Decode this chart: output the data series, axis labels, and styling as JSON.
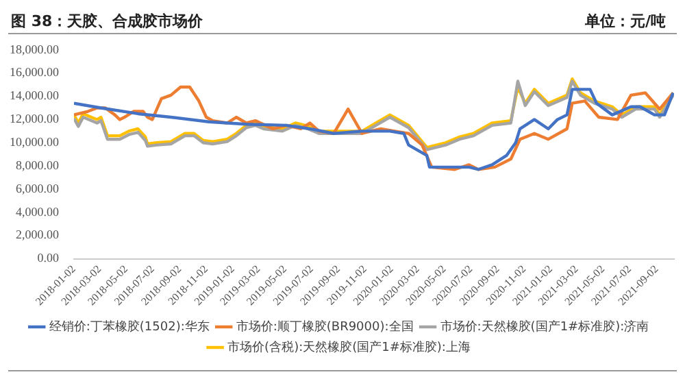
{
  "chart_data": {
    "type": "line",
    "title": "图 38：天胶、合成胶市场价",
    "annotations": [
      "单位：元/吨"
    ],
    "xlim": [
      "2018-01-02",
      "2021-10-12"
    ],
    "xticks": [
      "2018-01-02",
      "2018-03-02",
      "2018-05-02",
      "2018-07-02",
      "2018-09-02",
      "2018-11-02",
      "2019-01-02",
      "2019-03-02",
      "2019-05-02",
      "2019-07-02",
      "2019-09-02",
      "2019-11-02",
      "2020-01-02",
      "2020-03-02",
      "2020-05-02",
      "2020-07-02",
      "2020-09-02",
      "2020-11-02",
      "2021-01-02",
      "2021-03-02",
      "2021-05-02",
      "2021-07-02",
      "2021-09-02"
    ],
    "ylim": [
      0,
      18000
    ],
    "yticks": [
      {
        "value": 0,
        "label": "0.00"
      },
      {
        "value": 2000,
        "label": "2,000.00"
      },
      {
        "value": 4000,
        "label": "4,000.00"
      },
      {
        "value": 6000,
        "label": "6,000.00"
      },
      {
        "value": 8000,
        "label": "8,000.00"
      },
      {
        "value": 10000,
        "label": "10,000.00"
      },
      {
        "value": 12000,
        "label": "12,000.00"
      },
      {
        "value": 14000,
        "label": "14,000.00"
      },
      {
        "value": 16000,
        "label": "16,000.00"
      },
      {
        "value": 18000,
        "label": "18,000.00"
      }
    ],
    "legend": "bottom",
    "marker": "none",
    "line_style": "solid",
    "series": [
      {
        "name": "经销价:丁苯橡胶(1502):华东",
        "color": "#4472c4",
        "x": [
          "2018-01-02",
          "2018-03-05",
          "2018-05-29",
          "2018-08-13",
          "2018-11-08",
          "2019-02-02",
          "2019-05-05",
          "2019-06-28",
          "2019-08-22",
          "2019-10-26",
          "2019-12-29",
          "2020-01-30",
          "2020-02-10",
          "2020-03-23",
          "2020-03-29",
          "2020-06-28",
          "2020-07-19",
          "2020-08-20",
          "2020-09-22",
          "2020-10-13",
          "2020-10-23",
          "2020-11-25",
          "2020-12-27",
          "2021-01-17",
          "2021-02-08",
          "2021-02-20",
          "2021-04-02",
          "2021-04-17",
          "2021-05-23",
          "2021-07-05",
          "2021-07-26",
          "2021-08-28",
          "2021-09-20",
          "2021-10-10"
        ],
        "values": [
          13400,
          13000,
          12500,
          12200,
          11800,
          11600,
          11500,
          11200,
          10800,
          11000,
          11000,
          10800,
          9800,
          8900,
          7900,
          7900,
          7700,
          8100,
          8900,
          10000,
          11200,
          12000,
          11200,
          12000,
          12400,
          14600,
          14600,
          13400,
          12400,
          13100,
          13100,
          12400,
          12400,
          14300
        ]
      },
      {
        "name": "市场价:顺丁橡胶(BR9000):全国",
        "color": "#ed7d31",
        "x": [
          "2018-01-02",
          "2018-02-03",
          "2018-02-24",
          "2018-03-15",
          "2018-04-06",
          "2018-04-17",
          "2018-04-28",
          "2018-05-19",
          "2018-06-10",
          "2018-06-20",
          "2018-07-01",
          "2018-07-22",
          "2018-08-13",
          "2018-09-04",
          "2018-09-25",
          "2018-10-16",
          "2018-11-02",
          "2018-11-17",
          "2018-12-20",
          "2019-01-10",
          "2019-02-02",
          "2019-02-23",
          "2019-04-04",
          "2019-05-05",
          "2019-06-07",
          "2019-06-28",
          "2019-07-19",
          "2019-08-22",
          "2019-09-24",
          "2019-10-26",
          "2019-12-08",
          "2020-01-09",
          "2020-02-10",
          "2020-03-12",
          "2020-04-03",
          "2020-05-26",
          "2020-06-28",
          "2020-07-19",
          "2020-08-26",
          "2020-10-02",
          "2020-10-23",
          "2020-11-25",
          "2020-12-27",
          "2021-02-08",
          "2021-02-20",
          "2021-03-21",
          "2021-04-22",
          "2021-06-04",
          "2021-07-05",
          "2021-08-07",
          "2021-09-09",
          "2021-10-10"
        ],
        "values": [
          12400,
          12700,
          13000,
          13000,
          12400,
          12000,
          12200,
          12700,
          12700,
          12200,
          12000,
          13800,
          14100,
          14800,
          14800,
          13600,
          12200,
          11900,
          11700,
          12200,
          11700,
          11900,
          11200,
          11500,
          11200,
          11700,
          11000,
          10800,
          12900,
          10800,
          11200,
          11000,
          10800,
          9800,
          7900,
          7700,
          8100,
          7700,
          7900,
          8600,
          10300,
          10800,
          10300,
          11200,
          13400,
          13600,
          12200,
          12000,
          14100,
          14300,
          12900,
          14300
        ]
      },
      {
        "name": "市场价:天然橡胶(国产1#标准胶):济南",
        "color": "#a5a5a5",
        "x": [
          "2018-01-02",
          "2018-01-12",
          "2018-01-23",
          "2018-02-24",
          "2018-03-05",
          "2018-03-20",
          "2018-04-17",
          "2018-05-08",
          "2018-05-29",
          "2018-06-15",
          "2018-06-20",
          "2018-07-11",
          "2018-08-13",
          "2018-09-14",
          "2018-10-05",
          "2018-10-26",
          "2018-11-17",
          "2018-12-20",
          "2019-01-10",
          "2019-02-02",
          "2019-02-23",
          "2019-03-14",
          "2019-04-26",
          "2019-05-26",
          "2019-06-17",
          "2019-07-19",
          "2019-08-22",
          "2019-10-26",
          "2019-11-27",
          "2019-12-29",
          "2020-02-10",
          "2020-03-23",
          "2020-05-05",
          "2020-06-06",
          "2020-07-08",
          "2020-08-20",
          "2020-10-02",
          "2020-10-18",
          "2020-11-04",
          "2020-11-25",
          "2020-12-27",
          "2021-02-08",
          "2021-02-20",
          "2021-03-11",
          "2021-04-12",
          "2021-05-23",
          "2021-06-14",
          "2021-07-16",
          "2021-08-28",
          "2021-09-09",
          "2021-10-10"
        ],
        "values": [
          12100,
          11400,
          12200,
          11700,
          11900,
          10300,
          10300,
          10700,
          10900,
          10200,
          9700,
          9800,
          9900,
          10600,
          10600,
          10000,
          9900,
          10100,
          10600,
          11300,
          11500,
          11200,
          11000,
          11500,
          11300,
          10800,
          10800,
          10800,
          11500,
          12200,
          11300,
          9400,
          9800,
          10300,
          10600,
          11500,
          11700,
          15300,
          13200,
          14400,
          13200,
          13900,
          15300,
          14100,
          13400,
          12900,
          12200,
          12900,
          12900,
          12200,
          14100
        ]
      },
      {
        "name": "市场价(含税):天然橡胶(国产1#标准胶):上海",
        "color": "#ffc000",
        "x": [
          "2018-01-02",
          "2018-01-12",
          "2018-01-23",
          "2018-02-24",
          "2018-03-05",
          "2018-03-20",
          "2018-04-17",
          "2018-05-08",
          "2018-05-29",
          "2018-06-15",
          "2018-06-20",
          "2018-07-11",
          "2018-08-13",
          "2018-09-14",
          "2018-10-05",
          "2018-10-26",
          "2018-11-17",
          "2018-12-20",
          "2019-01-10",
          "2019-02-02",
          "2019-02-23",
          "2019-03-14",
          "2019-04-26",
          "2019-05-26",
          "2019-06-17",
          "2019-07-19",
          "2019-08-22",
          "2019-10-26",
          "2019-11-27",
          "2019-12-29",
          "2020-02-10",
          "2020-03-23",
          "2020-05-05",
          "2020-06-06",
          "2020-07-08",
          "2020-08-20",
          "2020-10-02",
          "2020-10-18",
          "2020-11-04",
          "2020-11-25",
          "2020-12-27",
          "2021-02-08",
          "2021-02-20",
          "2021-03-11",
          "2021-04-12",
          "2021-05-23",
          "2021-06-14",
          "2021-07-16",
          "2021-08-28",
          "2021-09-09",
          "2021-10-10"
        ],
        "values": [
          12400,
          11700,
          12500,
          12000,
          12200,
          10600,
          10600,
          11000,
          11200,
          10500,
          9900,
          10000,
          10100,
          10800,
          10800,
          10200,
          10100,
          10300,
          10800,
          11500,
          11700,
          11400,
          11200,
          11700,
          11500,
          11000,
          11000,
          11000,
          11700,
          12400,
          11500,
          9600,
          10000,
          10500,
          10800,
          11700,
          11900,
          14800,
          13400,
          14600,
          13400,
          14100,
          15500,
          14300,
          13600,
          13100,
          12400,
          13100,
          13100,
          12400,
          14300
        ]
      }
    ]
  }
}
